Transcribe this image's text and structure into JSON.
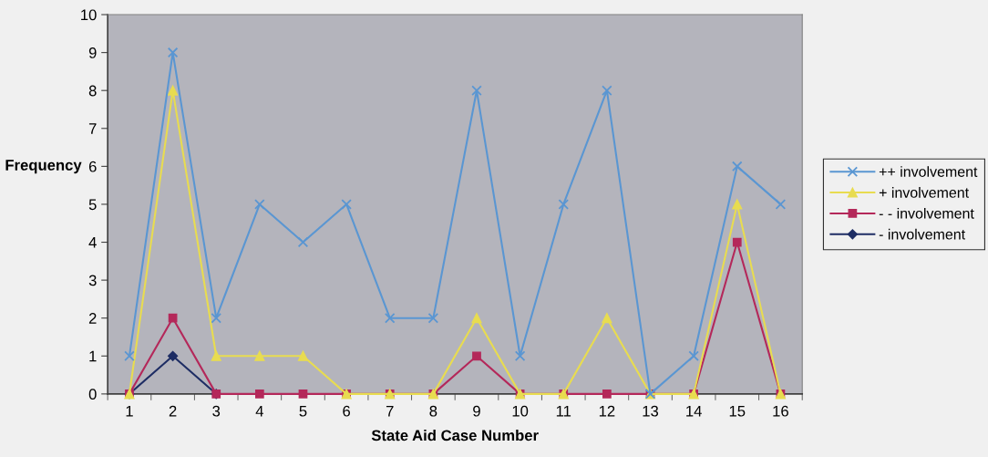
{
  "chart_data": {
    "type": "line",
    "xlabel": "State Aid Case Number",
    "ylabel": "Frequency",
    "categories": [
      "1",
      "2",
      "3",
      "4",
      "5",
      "6",
      "7",
      "8",
      "9",
      "10",
      "11",
      "12",
      "13",
      "14",
      "15",
      "16"
    ],
    "series": [
      {
        "name": "++ involvement",
        "color": "#5a96d2",
        "marker": "cross",
        "values": [
          1,
          9,
          2,
          5,
          4,
          5,
          2,
          2,
          8,
          1,
          5,
          8,
          0,
          1,
          6,
          5
        ]
      },
      {
        "name": "+ involvement",
        "color": "#e8dc50",
        "marker": "triangle",
        "values": [
          0,
          8,
          1,
          1,
          1,
          0,
          0,
          0,
          2,
          0,
          0,
          2,
          0,
          0,
          5,
          0
        ]
      },
      {
        "name": "- - involvement",
        "color": "#b4285a",
        "marker": "square",
        "values": [
          0,
          2,
          0,
          0,
          0,
          0,
          0,
          0,
          1,
          0,
          0,
          0,
          0,
          0,
          4,
          0
        ]
      },
      {
        "name": "- involvement",
        "color": "#1e2d64",
        "marker": "diamond",
        "values": [
          0,
          1,
          0,
          null,
          null,
          null,
          null,
          null,
          null,
          null,
          null,
          null,
          null,
          null,
          null,
          null
        ]
      }
    ],
    "ylim": [
      0,
      10
    ],
    "yticks": [
      0,
      1,
      2,
      3,
      4,
      5,
      6,
      7,
      8,
      9,
      10
    ],
    "legend": "right"
  }
}
